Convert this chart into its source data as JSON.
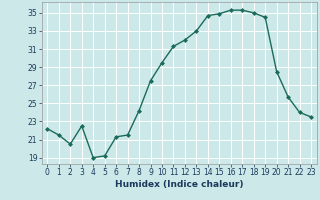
{
  "x": [
    0,
    1,
    2,
    3,
    4,
    5,
    6,
    7,
    8,
    9,
    10,
    11,
    12,
    13,
    14,
    15,
    16,
    17,
    18,
    19,
    20,
    21,
    22,
    23
  ],
  "y": [
    22.2,
    21.5,
    20.5,
    22.5,
    19.0,
    19.2,
    21.3,
    21.5,
    24.2,
    27.5,
    29.5,
    31.3,
    32.0,
    33.0,
    34.7,
    34.9,
    35.3,
    35.3,
    35.0,
    34.5,
    28.5,
    25.7,
    24.0,
    23.5
  ],
  "line_color": "#1a6b5a",
  "marker": "D",
  "marker_size": 2.0,
  "linewidth": 1.0,
  "bg_color": "#cce8e8",
  "grid_color": "#ffffff",
  "grid_linewidth": 0.7,
  "xlabel": "Humidex (Indice chaleur)",
  "xlabel_fontsize": 6.5,
  "xlabel_fontweight": "bold",
  "xlabel_color": "#1a3a5c",
  "tick_color": "#1a3a5c",
  "tick_fontsize": 5.5,
  "ylabel_ticks": [
    19,
    21,
    23,
    25,
    27,
    29,
    31,
    33,
    35
  ],
  "xlim": [
    -0.5,
    23.5
  ],
  "ylim": [
    18.3,
    36.2
  ],
  "xticks": [
    0,
    1,
    2,
    3,
    4,
    5,
    6,
    7,
    8,
    9,
    10,
    11,
    12,
    13,
    14,
    15,
    16,
    17,
    18,
    19,
    20,
    21,
    22,
    23
  ]
}
